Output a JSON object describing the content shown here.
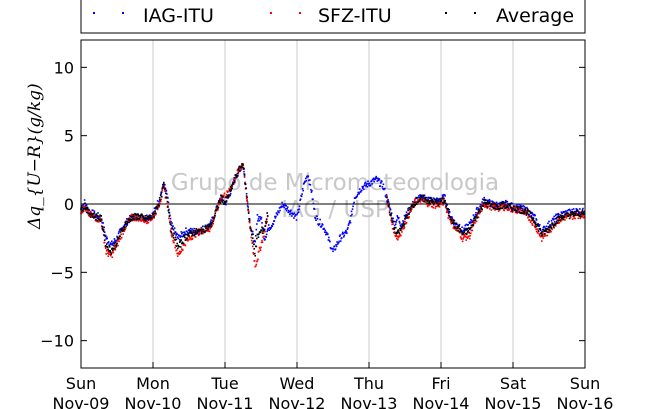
{
  "chart_data": {
    "type": "scatter",
    "ylabel": "Δq_{U−R}(g/kg)",
    "ylim": [
      -12,
      12
    ],
    "yticks": [
      -10,
      -5,
      0,
      5,
      10
    ],
    "x_range_days": [
      0,
      7
    ],
    "xtick_labels": [
      [
        "Sun",
        "Nov-09"
      ],
      [
        "Mon",
        "Nov-10"
      ],
      [
        "Tue",
        "Nov-11"
      ],
      [
        "Wed",
        "Nov-12"
      ],
      [
        "Thu",
        "Nov-13"
      ],
      [
        "Fri",
        "Nov-14"
      ],
      [
        "Sat",
        "Nov-15"
      ],
      [
        "Sun",
        "Nov-16"
      ]
    ],
    "grid": "vertical",
    "legend_position": "top",
    "watermark": [
      "Grupo de Micrometeorologia",
      "IAG / USP"
    ],
    "series": [
      {
        "name": "IAG-ITU",
        "color": "#0000ff",
        "x": [
          0,
          0.05,
          0.1,
          0.2,
          0.28,
          0.35,
          0.42,
          0.5,
          0.6,
          0.7,
          0.8,
          0.9,
          1.0,
          1.1,
          1.15,
          1.2,
          1.25,
          1.3,
          1.35,
          1.45,
          1.55,
          1.65,
          1.8,
          1.95,
          2.0,
          2.05,
          2.15,
          2.25,
          2.35,
          2.42,
          2.45,
          2.5,
          2.55,
          2.6,
          2.65,
          2.7,
          2.75,
          2.8,
          2.9,
          3.0,
          3.1,
          3.15,
          3.2,
          3.25,
          3.3,
          3.35,
          3.4,
          3.5,
          3.6,
          3.7,
          3.75,
          3.8,
          3.9,
          4.0,
          4.1,
          4.2,
          4.3,
          4.35,
          4.4,
          4.45,
          4.55,
          4.65,
          4.75,
          4.85,
          4.95,
          5.05,
          5.1,
          5.15,
          5.2,
          5.25,
          5.3,
          5.4,
          5.5,
          5.6,
          5.7,
          5.8,
          5.9,
          6.0,
          6.1,
          6.2,
          6.3,
          6.4,
          6.5,
          6.6,
          6.7,
          6.8,
          6.9,
          7.0
        ],
        "y": [
          -0.3,
          0.1,
          -0.5,
          -0.8,
          -1.0,
          -2.5,
          -3.0,
          -2.5,
          -1.5,
          -1.0,
          -0.9,
          -1.0,
          -0.8,
          0.5,
          1.5,
          0.5,
          -1.5,
          -2.0,
          -2.5,
          -2.0,
          -2.0,
          -2.0,
          -1.5,
          0.5,
          0.0,
          0.5,
          2.0,
          3.0,
          -1.5,
          -3.0,
          -1.0,
          -1.0,
          -2.5,
          -1.8,
          -1.5,
          -1.0,
          -0.5,
          0.0,
          -0.5,
          -1.0,
          1.5,
          2.2,
          1.0,
          -0.8,
          -1.3,
          -1.5,
          -2.0,
          -3.5,
          -2.5,
          -2.0,
          -1.0,
          0.5,
          1.2,
          1.5,
          1.8,
          1.3,
          -0.5,
          -1.5,
          -1.0,
          -1.5,
          -0.5,
          0.3,
          0.5,
          0.3,
          0.2,
          0.5,
          -0.5,
          -1.0,
          -1.5,
          -1.5,
          -2.0,
          -1.5,
          -0.5,
          0.3,
          0.0,
          -0.1,
          0.0,
          -0.2,
          -0.3,
          -0.5,
          -1.0,
          -2.0,
          -1.5,
          -1.0,
          -0.7,
          -0.6,
          -0.5,
          -0.6
        ]
      },
      {
        "name": "SFZ-ITU",
        "color": "#ff0000",
        "x": [
          0,
          0.05,
          0.1,
          0.2,
          0.28,
          0.35,
          0.42,
          0.5,
          0.6,
          0.7,
          0.8,
          0.9,
          1.0,
          1.1,
          1.15,
          1.2,
          1.25,
          1.3,
          1.35,
          1.45,
          1.55,
          1.65,
          1.8,
          1.95,
          2.05,
          2.15,
          2.25,
          2.35,
          2.42,
          2.45,
          2.5,
          2.55,
          2.6,
          4.25,
          4.3,
          4.35,
          4.4,
          4.45,
          4.55,
          4.65,
          4.75,
          4.85,
          4.95,
          5.05,
          5.1,
          5.15,
          5.2,
          5.25,
          5.3,
          5.4,
          5.5,
          5.6,
          5.7,
          5.8,
          5.9,
          6.0,
          6.1,
          6.2,
          6.3,
          6.4,
          6.5,
          6.6,
          6.7,
          6.8,
          6.9,
          7.0
        ],
        "y": [
          -0.5,
          -0.3,
          -0.7,
          -1.0,
          -1.2,
          -3.5,
          -3.8,
          -3.0,
          -1.8,
          -1.0,
          -1.0,
          -1.2,
          -1.0,
          0.2,
          1.2,
          0.0,
          -2.0,
          -2.8,
          -3.8,
          -2.8,
          -2.3,
          -2.0,
          -1.8,
          0.5,
          0.8,
          2.0,
          3.0,
          -1.8,
          -4.5,
          -4.0,
          -3.0,
          -2.0,
          -0.8,
          0.5,
          -1.0,
          -2.0,
          -2.5,
          -2.0,
          -0.8,
          0.2,
          0.2,
          0.0,
          -0.1,
          0.2,
          -0.8,
          -1.3,
          -1.8,
          -2.0,
          -2.5,
          -2.3,
          -1.0,
          0.0,
          -0.2,
          -0.3,
          -0.2,
          -0.4,
          -0.5,
          -0.8,
          -1.5,
          -2.5,
          -2.0,
          -1.3,
          -1.0,
          -0.9,
          -0.8,
          -0.8
        ]
      },
      {
        "name": "Average",
        "color": "#000000",
        "x": [
          0,
          0.05,
          0.1,
          0.2,
          0.28,
          0.35,
          0.42,
          0.5,
          0.6,
          0.7,
          0.8,
          0.9,
          1.0,
          1.1,
          1.15,
          1.2,
          1.25,
          1.3,
          1.35,
          1.45,
          1.55,
          1.65,
          1.8,
          1.95,
          2.0,
          2.05,
          2.15,
          2.25,
          2.35,
          2.42,
          2.45,
          2.5,
          2.55,
          2.6,
          4.25,
          4.3,
          4.35,
          4.4,
          4.45,
          4.55,
          4.65,
          4.75,
          4.85,
          4.95,
          5.05,
          5.1,
          5.15,
          5.2,
          5.25,
          5.3,
          5.4,
          5.5,
          5.6,
          5.7,
          5.8,
          5.9,
          6.0,
          6.1,
          6.2,
          6.3,
          6.4,
          6.5,
          6.6,
          6.7,
          6.8,
          6.9,
          7.0
        ],
        "y": [
          -0.4,
          -0.1,
          -0.6,
          -0.9,
          -1.1,
          -3.0,
          -3.4,
          -2.8,
          -1.6,
          -1.0,
          -0.9,
          -1.1,
          -0.9,
          0.3,
          1.4,
          0.3,
          -1.8,
          -2.4,
          -3.2,
          -2.4,
          -2.1,
          -2.0,
          -1.6,
          0.5,
          0.1,
          0.6,
          2.0,
          3.0,
          -1.6,
          -3.6,
          -2.4,
          -2.0,
          -1.8,
          -0.5,
          0.5,
          -0.8,
          -1.8,
          -2.2,
          -1.8,
          -0.6,
          0.2,
          0.4,
          0.2,
          0.1,
          0.3,
          -0.6,
          -1.1,
          -1.6,
          -1.8,
          -2.2,
          -1.9,
          -0.8,
          0.1,
          -0.1,
          -0.2,
          -0.1,
          -0.3,
          -0.4,
          -0.6,
          -1.2,
          -2.2,
          -1.8,
          -1.2,
          -0.9,
          -0.8,
          -0.7,
          -0.7
        ]
      }
    ]
  }
}
